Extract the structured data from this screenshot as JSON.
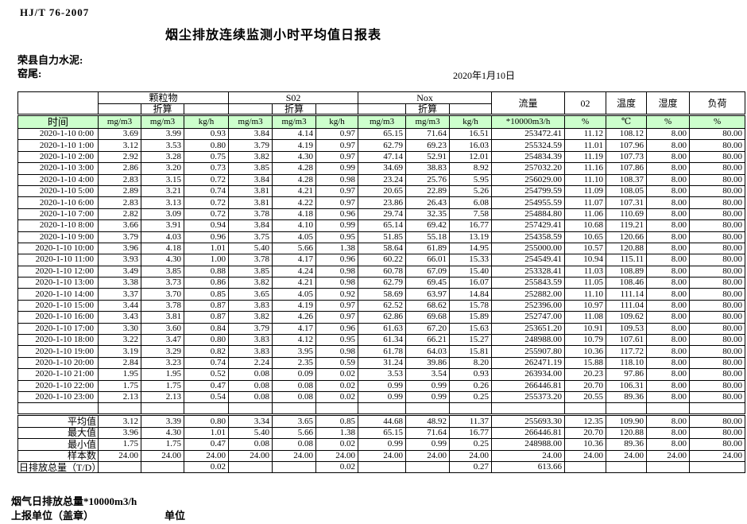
{
  "meta": {
    "standard": "HJ/T  76-2007",
    "title": "烟尘排放连续监测小时平均值日报表",
    "company": "荣县自力水泥:",
    "location": "窑尾:",
    "date": "2020年1月10日"
  },
  "table": {
    "time_header": "时间",
    "converted": "折算",
    "groups": [
      "颗粒物",
      "S02",
      "Nox"
    ],
    "flow": "流量",
    "o2": "02",
    "temp": "温度",
    "humidity": "湿度",
    "load": "负荷",
    "units": [
      "mg/m3",
      "mg/m3",
      "kg/h",
      "mg/m3",
      "mg/m3",
      "kg/h",
      "mg/m3",
      "mg/m3",
      "kg/h",
      "*10000m3/h",
      "%",
      "℃",
      "%",
      "%"
    ],
    "rows": [
      {
        "time": "2020-1-10 0:00",
        "values": [
          "3.69",
          "3.99",
          "0.93",
          "3.84",
          "4.14",
          "0.97",
          "65.15",
          "71.64",
          "16.51",
          "253472.41",
          "11.12",
          "108.12",
          "8.00",
          "80.00"
        ]
      },
      {
        "time": "2020-1-10 1:00",
        "values": [
          "3.12",
          "3.53",
          "0.80",
          "3.79",
          "4.19",
          "0.97",
          "62.79",
          "69.23",
          "16.03",
          "255324.59",
          "11.01",
          "107.96",
          "8.00",
          "80.00"
        ]
      },
      {
        "time": "2020-1-10 2:00",
        "values": [
          "2.92",
          "3.28",
          "0.75",
          "3.82",
          "4.30",
          "0.97",
          "47.14",
          "52.91",
          "12.01",
          "254834.39",
          "11.19",
          "107.73",
          "8.00",
          "80.00"
        ]
      },
      {
        "time": "2020-1-10 3:00",
        "values": [
          "2.86",
          "3.20",
          "0.73",
          "3.85",
          "4.28",
          "0.99",
          "34.69",
          "38.83",
          "8.92",
          "257032.20",
          "11.16",
          "107.86",
          "8.00",
          "80.00"
        ]
      },
      {
        "time": "2020-1-10 4:00",
        "values": [
          "2.83",
          "3.15",
          "0.72",
          "3.84",
          "4.28",
          "0.98",
          "23.24",
          "25.76",
          "5.95",
          "256029.00",
          "11.10",
          "108.37",
          "8.00",
          "80.00"
        ]
      },
      {
        "time": "2020-1-10 5:00",
        "values": [
          "2.89",
          "3.21",
          "0.74",
          "3.81",
          "4.21",
          "0.97",
          "20.65",
          "22.89",
          "5.26",
          "254799.59",
          "11.09",
          "108.05",
          "8.00",
          "80.00"
        ]
      },
      {
        "time": "2020-1-10 6:00",
        "values": [
          "2.83",
          "3.13",
          "0.72",
          "3.81",
          "4.22",
          "0.97",
          "23.86",
          "26.43",
          "6.08",
          "254955.59",
          "11.07",
          "107.31",
          "8.00",
          "80.00"
        ]
      },
      {
        "time": "2020-1-10 7:00",
        "values": [
          "2.82",
          "3.09",
          "0.72",
          "3.78",
          "4.18",
          "0.96",
          "29.74",
          "32.35",
          "7.58",
          "254884.80",
          "11.06",
          "110.69",
          "8.00",
          "80.00"
        ]
      },
      {
        "time": "2020-1-10 8:00",
        "values": [
          "3.66",
          "3.91",
          "0.94",
          "3.84",
          "4.10",
          "0.99",
          "65.14",
          "69.42",
          "16.77",
          "257429.41",
          "10.68",
          "119.21",
          "8.00",
          "80.00"
        ]
      },
      {
        "time": "2020-1-10 9:00",
        "values": [
          "3.79",
          "4.03",
          "0.96",
          "3.75",
          "4.05",
          "0.95",
          "51.85",
          "55.18",
          "13.19",
          "254358.59",
          "10.65",
          "120.66",
          "8.00",
          "80.00"
        ]
      },
      {
        "time": "2020-1-10 10:00",
        "values": [
          "3.96",
          "4.18",
          "1.01",
          "5.40",
          "5.66",
          "1.38",
          "58.64",
          "61.89",
          "14.95",
          "255000.00",
          "10.57",
          "120.88",
          "8.00",
          "80.00"
        ]
      },
      {
        "time": "2020-1-10 11:00",
        "values": [
          "3.93",
          "4.30",
          "1.00",
          "3.78",
          "4.17",
          "0.96",
          "60.22",
          "66.01",
          "15.33",
          "254549.41",
          "10.94",
          "115.11",
          "8.00",
          "80.00"
        ]
      },
      {
        "time": "2020-1-10 12:00",
        "values": [
          "3.49",
          "3.85",
          "0.88",
          "3.85",
          "4.24",
          "0.98",
          "60.78",
          "67.09",
          "15.40",
          "253328.41",
          "11.03",
          "108.89",
          "8.00",
          "80.00"
        ]
      },
      {
        "time": "2020-1-10 13:00",
        "values": [
          "3.38",
          "3.73",
          "0.86",
          "3.82",
          "4.21",
          "0.98",
          "62.79",
          "69.45",
          "16.07",
          "255843.59",
          "11.05",
          "108.46",
          "8.00",
          "80.00"
        ]
      },
      {
        "time": "2020-1-10 14:00",
        "values": [
          "3.37",
          "3.70",
          "0.85",
          "3.65",
          "4.05",
          "0.92",
          "58.69",
          "63.97",
          "14.84",
          "252882.00",
          "11.10",
          "111.14",
          "8.00",
          "80.00"
        ]
      },
      {
        "time": "2020-1-10 15:00",
        "values": [
          "3.44",
          "3.78",
          "0.87",
          "3.83",
          "4.19",
          "0.97",
          "62.52",
          "68.62",
          "15.78",
          "252396.00",
          "10.97",
          "111.04",
          "8.00",
          "80.00"
        ]
      },
      {
        "time": "2020-1-10 16:00",
        "values": [
          "3.43",
          "3.81",
          "0.87",
          "3.82",
          "4.26",
          "0.97",
          "62.86",
          "69.68",
          "15.89",
          "252747.00",
          "11.08",
          "109.62",
          "8.00",
          "80.00"
        ]
      },
      {
        "time": "2020-1-10 17:00",
        "values": [
          "3.30",
          "3.60",
          "0.84",
          "3.79",
          "4.17",
          "0.96",
          "61.63",
          "67.20",
          "15.63",
          "253651.20",
          "10.91",
          "109.53",
          "8.00",
          "80.00"
        ]
      },
      {
        "time": "2020-1-10 18:00",
        "values": [
          "3.22",
          "3.47",
          "0.80",
          "3.83",
          "4.12",
          "0.95",
          "61.34",
          "66.21",
          "15.27",
          "248988.00",
          "10.79",
          "107.61",
          "8.00",
          "80.00"
        ]
      },
      {
        "time": "2020-1-10 19:00",
        "values": [
          "3.19",
          "3.29",
          "0.82",
          "3.83",
          "3.95",
          "0.98",
          "61.78",
          "64.03",
          "15.81",
          "255907.80",
          "10.36",
          "117.72",
          "8.00",
          "80.00"
        ]
      },
      {
        "time": "2020-1-10 20:00",
        "values": [
          "2.84",
          "3.23",
          "0.74",
          "2.24",
          "2.35",
          "0.59",
          "31.24",
          "39.86",
          "8.20",
          "262471.19",
          "15.88",
          "118.10",
          "8.00",
          "80.00"
        ]
      },
      {
        "time": "2020-1-10 21:00",
        "values": [
          "1.95",
          "1.95",
          "0.52",
          "0.08",
          "0.09",
          "0.02",
          "3.53",
          "3.54",
          "0.93",
          "263934.00",
          "20.23",
          "97.86",
          "8.00",
          "80.00"
        ]
      },
      {
        "time": "2020-1-10 22:00",
        "values": [
          "1.75",
          "1.75",
          "0.47",
          "0.08",
          "0.08",
          "0.02",
          "0.99",
          "0.99",
          "0.26",
          "266446.81",
          "20.70",
          "106.31",
          "8.00",
          "80.00"
        ]
      },
      {
        "time": "2020-1-10 23:00",
        "values": [
          "2.13",
          "2.13",
          "0.54",
          "0.08",
          "0.08",
          "0.02",
          "0.99",
          "0.99",
          "0.25",
          "255373.20",
          "20.55",
          "89.36",
          "8.00",
          "80.00"
        ]
      }
    ],
    "summary": [
      {
        "label": "平均值",
        "values": [
          "3.12",
          "3.39",
          "0.80",
          "3.34",
          "3.65",
          "0.85",
          "44.68",
          "48.92",
          "11.37",
          "255693.30",
          "12.35",
          "109.90",
          "8.00",
          "80.00"
        ]
      },
      {
        "label": "最大值",
        "values": [
          "3.96",
          "4.30",
          "1.01",
          "5.40",
          "5.66",
          "1.38",
          "65.15",
          "71.64",
          "16.77",
          "266446.81",
          "20.70",
          "120.88",
          "8.00",
          "80.00"
        ]
      },
      {
        "label": "最小值",
        "values": [
          "1.75",
          "1.75",
          "0.47",
          "0.08",
          "0.08",
          "0.02",
          "0.99",
          "0.99",
          "0.25",
          "248988.00",
          "10.36",
          "89.36",
          "8.00",
          "80.00"
        ]
      },
      {
        "label": "样本数",
        "values": [
          "24.00",
          "24.00",
          "24.00",
          "24.00",
          "24.00",
          "24.00",
          "24.00",
          "24.00",
          "24.00",
          "24.00",
          "24.00",
          "24.00",
          "24.00",
          "24.00"
        ]
      },
      {
        "label": "日排放总量（T/D）",
        "align": "left",
        "values": [
          "",
          "",
          "0.02",
          "",
          "",
          "0.02",
          "",
          "",
          "0.27",
          "613.66",
          "",
          "",
          "",
          ""
        ]
      }
    ]
  },
  "footer": {
    "flue_total": "烟气日排放总量*10000m3/h",
    "report_unit": "上报单位（盖章）",
    "unit": "单位"
  },
  "colors": {
    "header_green": "#ccffcc"
  }
}
